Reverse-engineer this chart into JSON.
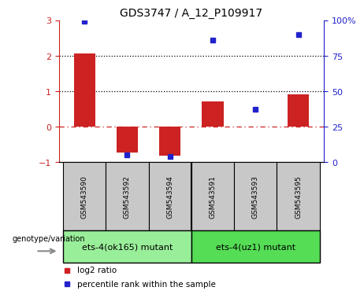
{
  "title": "GDS3747 / A_12_P109917",
  "samples": [
    "GSM543590",
    "GSM543592",
    "GSM543594",
    "GSM543591",
    "GSM543593",
    "GSM543595"
  ],
  "log2_ratio": [
    2.05,
    -0.72,
    -0.82,
    0.72,
    0.0,
    0.92
  ],
  "percentile_rank": [
    99,
    5,
    4,
    86,
    37,
    90
  ],
  "bar_color": "#cc2222",
  "dot_color": "#2222cc",
  "ylim_left": [
    -1,
    3
  ],
  "ylim_right": [
    0,
    100
  ],
  "yticks_left": [
    -1,
    0,
    1,
    2,
    3
  ],
  "yticks_right": [
    0,
    25,
    50,
    75,
    100
  ],
  "yticklabels_right": [
    "0",
    "25",
    "50",
    "75",
    "100%"
  ],
  "hlines_dotted": [
    1,
    2
  ],
  "hline_dash_dot": 0,
  "group1_label": "ets-4(ok165) mutant",
  "group2_label": "ets-4(uz1) mutant",
  "group1_color": "#99ee99",
  "group2_color": "#55dd55",
  "legend_label1": "log2 ratio",
  "legend_label2": "percentile rank within the sample",
  "genotype_label": "genotype/variation",
  "tick_label_color_left": "#cc2222",
  "tick_label_color_right": "#2222cc",
  "bar_width": 0.5,
  "gray_color": "#c8c8c8",
  "fig_width": 4.61,
  "fig_height": 3.54
}
